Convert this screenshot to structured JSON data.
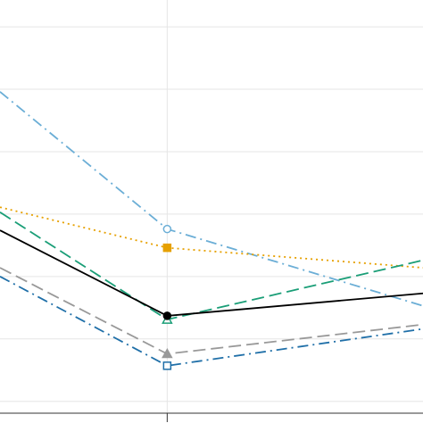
{
  "chart_data": {
    "type": "line",
    "x": [
      0,
      1,
      2.53
    ],
    "xlim": [
      0,
      2.53
    ],
    "xticks": [
      1
    ],
    "ylim": [
      -0.19,
      6.43
    ],
    "yticks": [
      0,
      1,
      2,
      3,
      4,
      5,
      6
    ],
    "grid": true,
    "series": [
      {
        "color": "#6baed6",
        "dash": "dashdot",
        "marker": "circle-open",
        "values": [
          4.96,
          2.76,
          1.53
        ]
      },
      {
        "color": "#e6a000",
        "dash": "dotted",
        "marker": "square",
        "values": [
          3.11,
          2.46,
          2.14
        ]
      },
      {
        "color": "#1a9e77",
        "dash": "dashed",
        "marker": "triangle-open",
        "values": [
          3.03,
          1.31,
          2.26
        ]
      },
      {
        "color": "#000000",
        "dash": "solid",
        "marker": "circle",
        "values": [
          2.74,
          1.37,
          1.73
        ]
      },
      {
        "color": "#999999",
        "dash": "dashed",
        "marker": "triangle",
        "values": [
          2.14,
          0.76,
          1.23
        ]
      },
      {
        "color": "#1f6fa8",
        "dash": "dashdot",
        "marker": "square-open",
        "values": [
          2.0,
          0.57,
          1.16
        ]
      }
    ]
  }
}
